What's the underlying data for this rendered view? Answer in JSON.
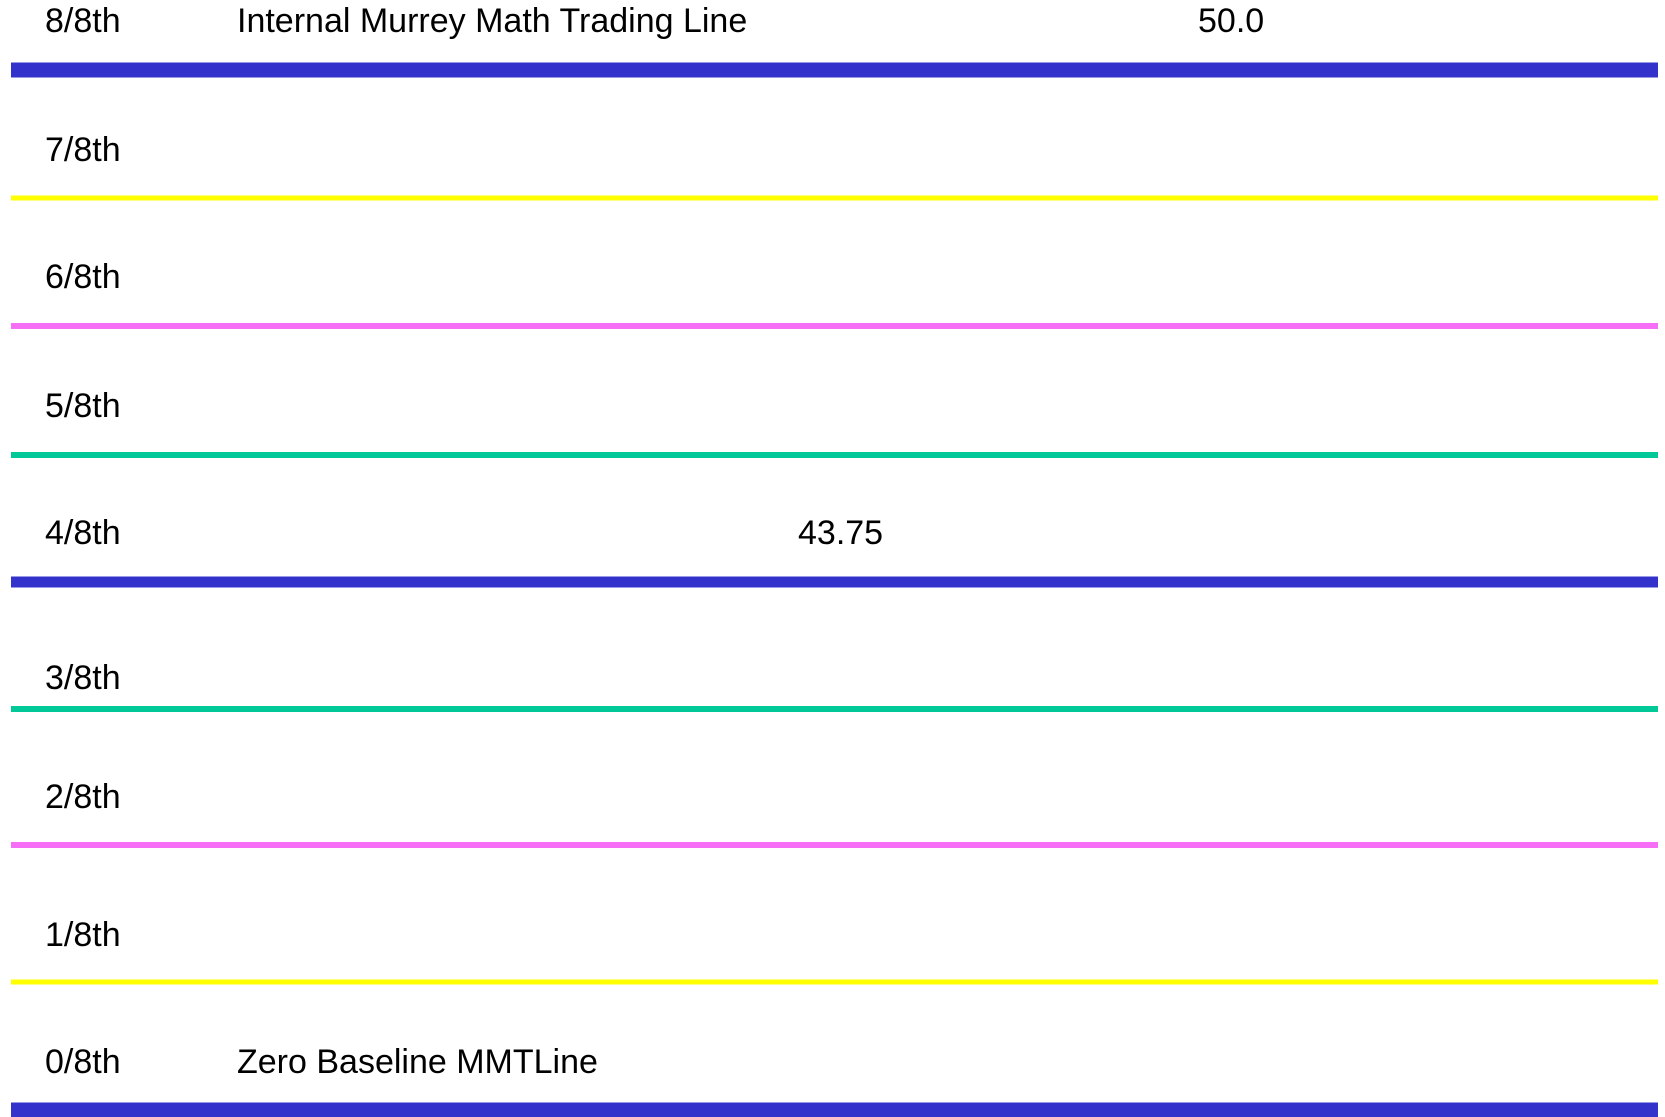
{
  "levels": [
    {
      "label": "8/8th",
      "text": "Internal Murrey Math Trading Line",
      "value": "50.0",
      "color": "#3333cc"
    },
    {
      "label": "7/8th",
      "color": "#ffff00"
    },
    {
      "label": "6/8th",
      "color": "#f56ef5"
    },
    {
      "label": "5/8th",
      "color": "#00c896"
    },
    {
      "label": "4/8th",
      "value": "43.75",
      "color": "#3333cc"
    },
    {
      "label": "3/8th",
      "color": "#00c896"
    },
    {
      "label": "2/8th",
      "color": "#f56ef5"
    },
    {
      "label": "1/8th",
      "color": "#ffff00"
    },
    {
      "label": "0/8th",
      "text": "Zero Baseline MMTLine",
      "color": "#3333cc"
    }
  ]
}
